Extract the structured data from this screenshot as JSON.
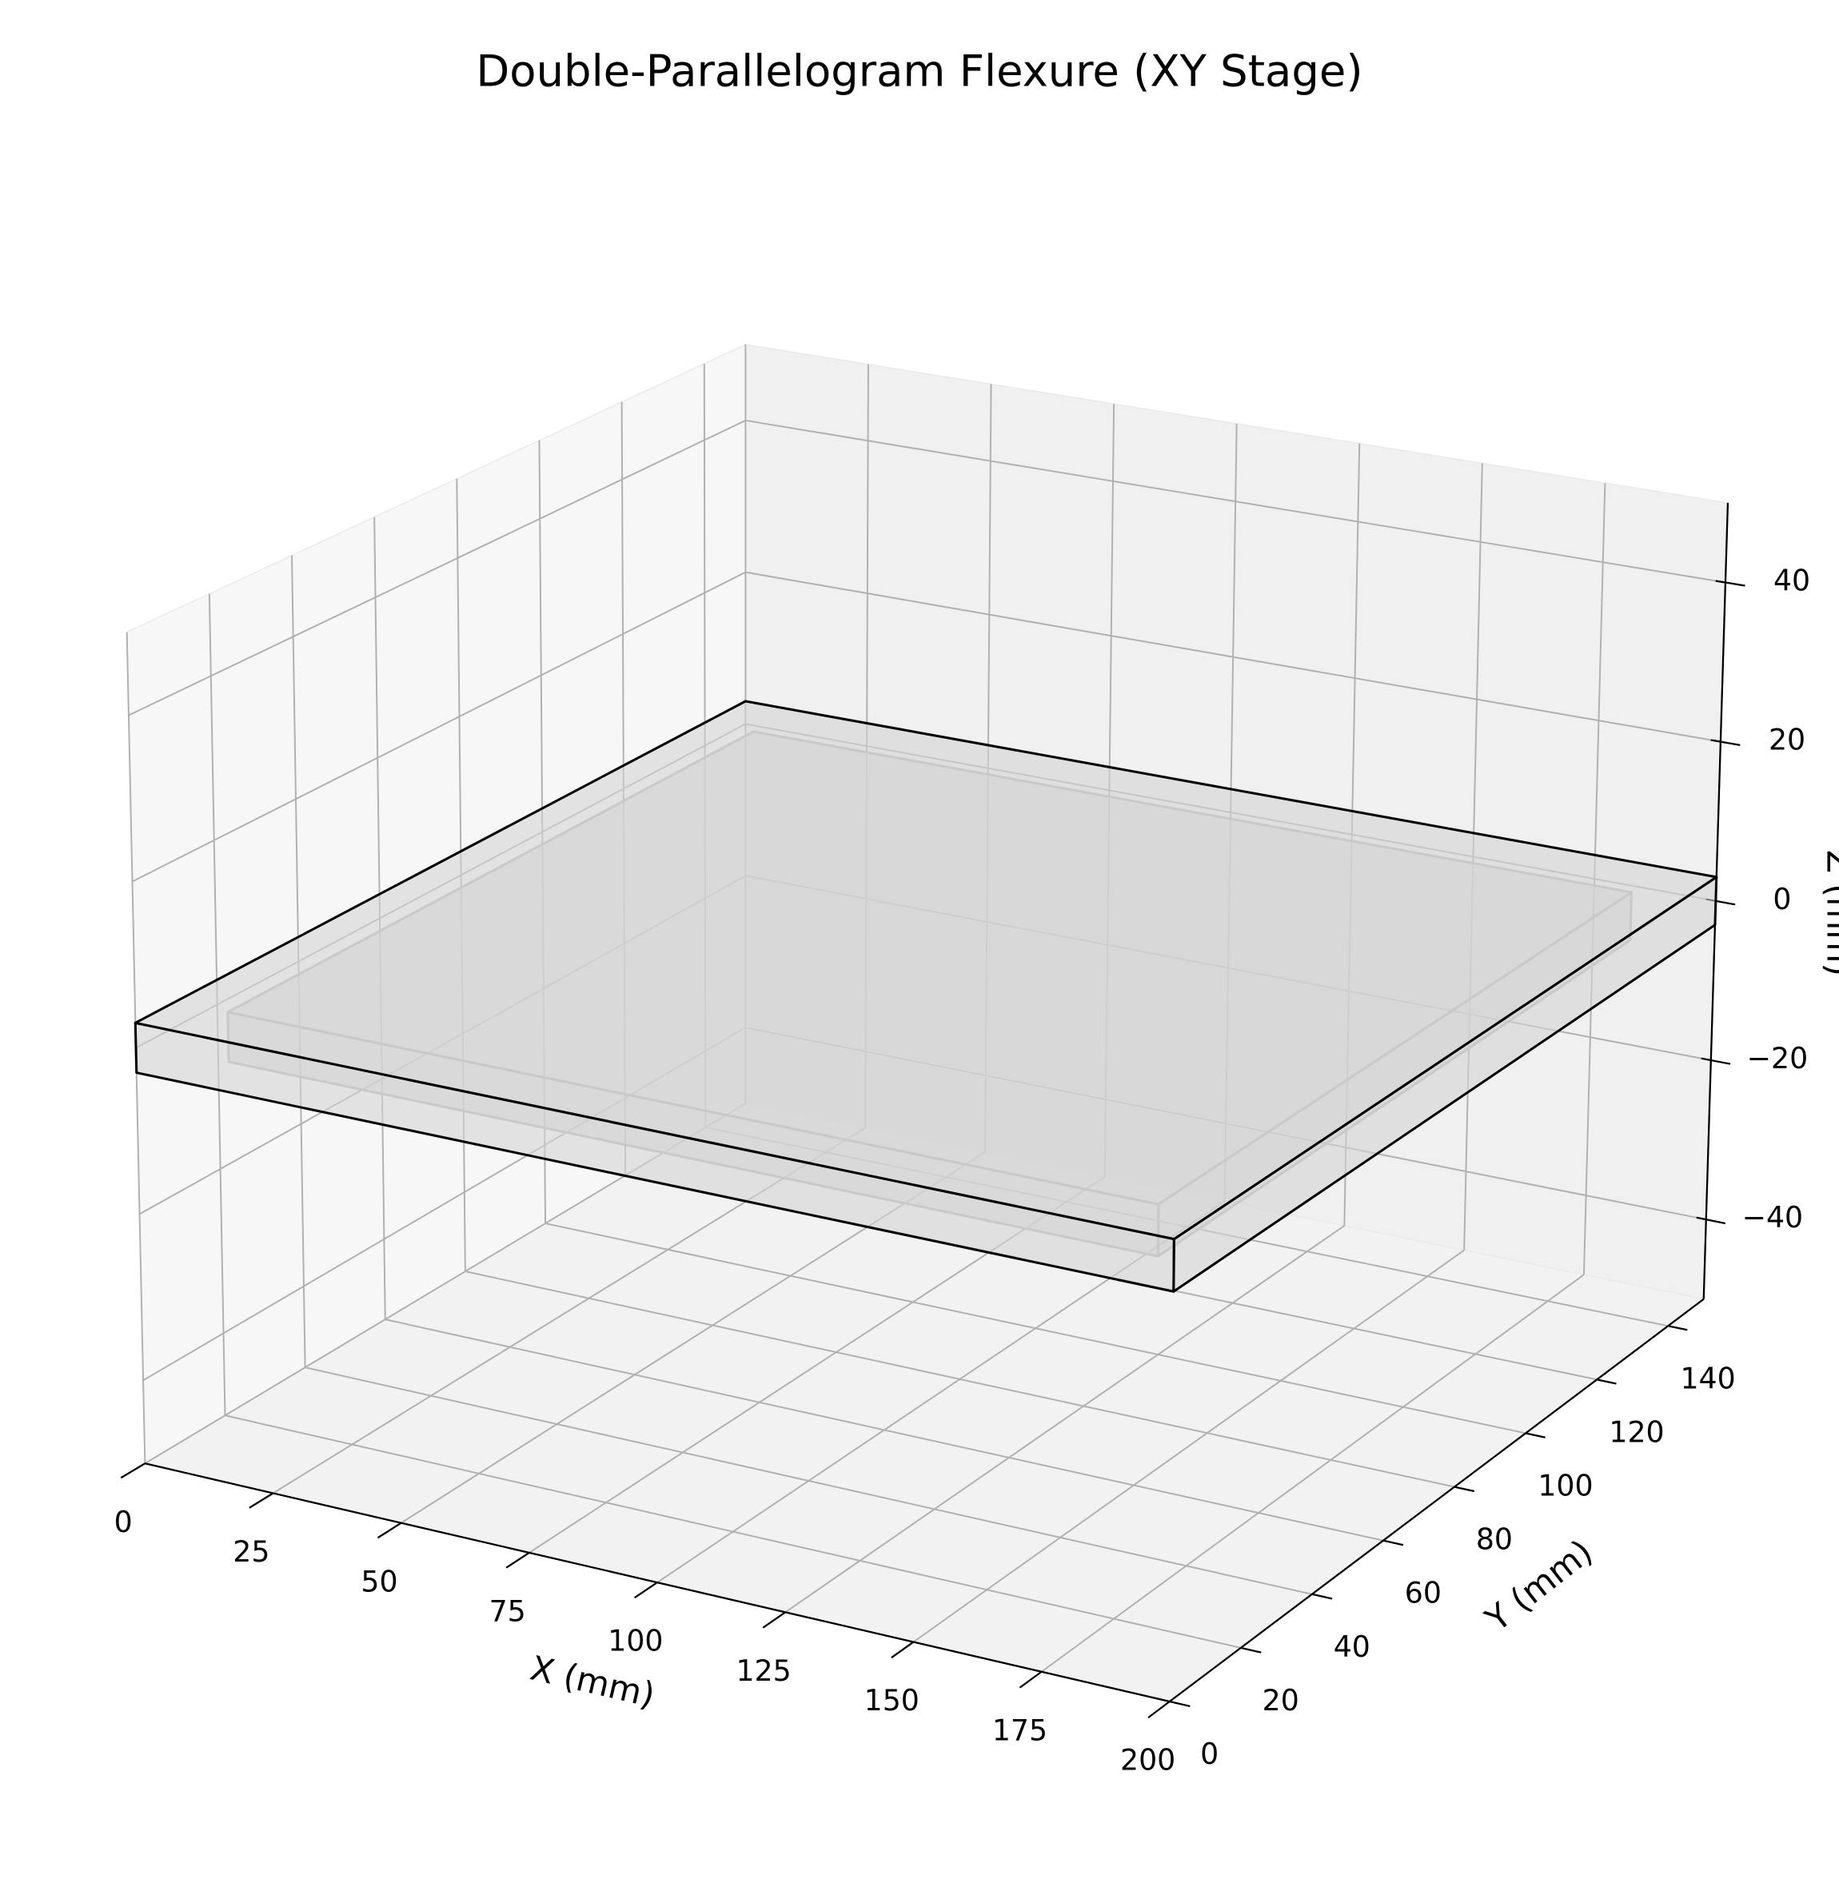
{
  "chart_data": {
    "type": "box3d",
    "title": "Double-Parallelogram Flexure (XY Stage)",
    "xlabel": "X (mm)",
    "ylabel": "Y (mm)",
    "zlabel": "Z (mm)",
    "xlim": [
      0,
      200
    ],
    "ylim": [
      0,
      150
    ],
    "zlim": [
      -50,
      50
    ],
    "xticks": [
      0,
      25,
      50,
      75,
      100,
      125,
      150,
      175,
      200
    ],
    "yticks": [
      0,
      20,
      40,
      60,
      80,
      100,
      120,
      140
    ],
    "zticks": [
      {
        "value": -40,
        "label": "−40"
      },
      {
        "value": -20,
        "label": "−20"
      },
      0,
      20,
      40
    ],
    "grid": true,
    "boxes": [
      {
        "x": [
          10,
          190
        ],
        "y": [
          10,
          140
        ],
        "z": [
          -3,
          3
        ],
        "color": "#d3d3d3",
        "edgecolor": "#b8b8b8"
      },
      {
        "x": [
          0,
          200
        ],
        "y": [
          0,
          150
        ],
        "z": [
          -3,
          3
        ],
        "color": "#d3d3d3",
        "edgecolor": "#000000"
      }
    ]
  }
}
